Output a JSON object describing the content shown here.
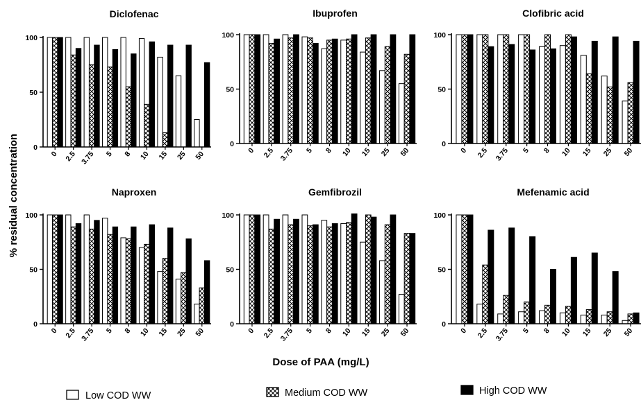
{
  "chart_data": {
    "type": "bar",
    "ylabel": "% residual concentration",
    "xlabel": "Dose of PAA (mg/L)",
    "categories": [
      "0",
      "2.5",
      "3.75",
      "5",
      "8",
      "10",
      "15",
      "25",
      "50"
    ],
    "yticks": [
      "0",
      "50",
      "100"
    ],
    "ylim": [
      0,
      100
    ],
    "grid": false,
    "legend_position": "bottom",
    "legend": [
      {
        "name": "Low COD WW",
        "fill": "white"
      },
      {
        "name": "Medium COD WW",
        "fill": "crosshatch"
      },
      {
        "name": "High COD WW",
        "fill": "black"
      }
    ],
    "panels": [
      {
        "title": "Diclofenac",
        "series": [
          {
            "name": "Low COD WW",
            "values": [
              100,
              100,
              100,
              100,
              100,
              99,
              82,
              65,
              25
            ]
          },
          {
            "name": "Medium COD WW",
            "values": [
              100,
              84,
              75,
              73,
              55,
              39,
              13,
              0,
              0
            ]
          },
          {
            "name": "High COD WW",
            "values": [
              100,
              90,
              93,
              89,
              85,
              96,
              93,
              93,
              77
            ]
          }
        ]
      },
      {
        "title": "Ibuprofen",
        "series": [
          {
            "name": "Low COD WW",
            "values": [
              100,
              100,
              100,
              98,
              87,
              95,
              84,
              67,
              55
            ]
          },
          {
            "name": "Medium COD WW",
            "values": [
              100,
              92,
              97,
              97,
              95,
              96,
              97,
              89,
              82
            ]
          },
          {
            "name": "High COD WW",
            "values": [
              100,
              96,
              100,
              92,
              96,
              100,
              100,
              100,
              100
            ]
          }
        ]
      },
      {
        "title": "Clofibric acid",
        "series": [
          {
            "name": "Low COD WW",
            "values": [
              100,
              100,
              100,
              100,
              89,
              90,
              81,
              62,
              39
            ]
          },
          {
            "name": "Medium COD WW",
            "values": [
              100,
              100,
              100,
              100,
              100,
              100,
              64,
              52,
              56
            ]
          },
          {
            "name": "High COD WW",
            "values": [
              100,
              89,
              91,
              86,
              87,
              98,
              94,
              98,
              94
            ]
          }
        ]
      },
      {
        "title": "Naproxen",
        "series": [
          {
            "name": "Low COD WW",
            "values": [
              100,
              100,
              100,
              97,
              79,
              70,
              48,
              41,
              18
            ]
          },
          {
            "name": "Medium COD WW",
            "values": [
              100,
              89,
              87,
              82,
              78,
              73,
              60,
              47,
              33
            ]
          },
          {
            "name": "High COD WW",
            "values": [
              100,
              92,
              95,
              89,
              89,
              91,
              88,
              78,
              58
            ]
          }
        ]
      },
      {
        "title": "Gemfibrozil",
        "series": [
          {
            "name": "Low COD WW",
            "values": [
              100,
              100,
              100,
              100,
              95,
              92,
              75,
              58,
              27
            ]
          },
          {
            "name": "Medium COD WW",
            "values": [
              100,
              87,
              91,
              90,
              89,
              93,
              100,
              91,
              83
            ]
          },
          {
            "name": "High COD WW",
            "values": [
              100,
              96,
              96,
              91,
              92,
              101,
              98,
              100,
              83
            ]
          }
        ]
      },
      {
        "title": "Mefenamic acid",
        "series": [
          {
            "name": "Low COD WW",
            "values": [
              100,
              18,
              9,
              11,
              12,
              10,
              8,
              8,
              3
            ]
          },
          {
            "name": "Medium COD WW",
            "values": [
              100,
              54,
              26,
              20,
              17,
              16,
              13,
              11,
              9
            ]
          },
          {
            "name": "High COD WW",
            "values": [
              100,
              86,
              88,
              80,
              50,
              61,
              65,
              48,
              10
            ]
          }
        ]
      }
    ]
  }
}
